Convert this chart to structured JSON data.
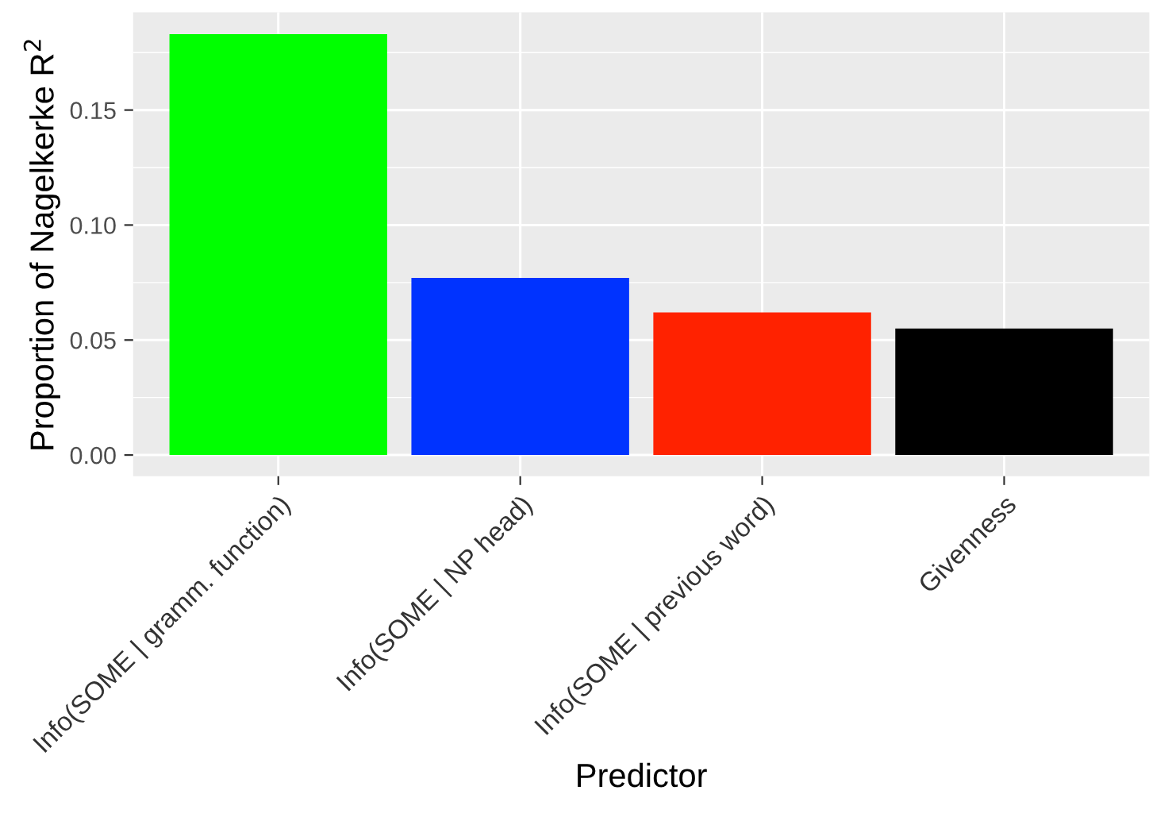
{
  "chart_data": {
    "type": "bar",
    "xlabel": "Predictor",
    "ylabel": "Proportion of Nagelkerke R$^{2}$",
    "categories": [
      "Info(SOME | gramm. function)",
      "Info(SOME | NP head)",
      "Info(SOME | previous word)",
      "Givenness"
    ],
    "values": [
      0.183,
      0.077,
      0.062,
      0.055
    ],
    "colors": [
      "#00ff00",
      "#0033ff",
      "#ff2200",
      "#000000"
    ],
    "ylim": [
      -0.0092,
      0.1925
    ],
    "yticks": [
      {
        "value": 0,
        "label": "0.00"
      },
      {
        "value": 0.05,
        "label": "0.05"
      },
      {
        "value": 0.1,
        "label": "0.10"
      },
      {
        "value": 0.15,
        "label": "0.15"
      }
    ],
    "grid": true
  }
}
